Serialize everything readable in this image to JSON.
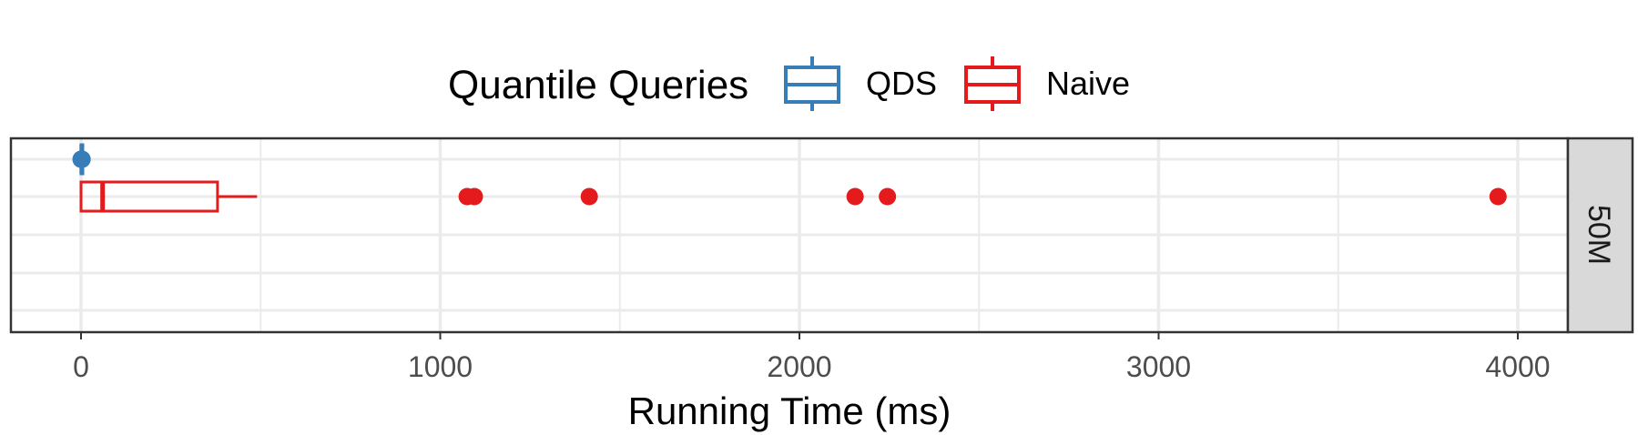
{
  "chart_data": {
    "type": "boxplot",
    "orientation": "horizontal",
    "title": "",
    "xlabel": "Running Time (ms)",
    "ylabel": "",
    "xlim": [
      -200,
      4150
    ],
    "x_ticks": [
      0,
      1000,
      2000,
      3000,
      4000
    ],
    "x_minor_ticks": [
      500,
      1500,
      2500,
      3500
    ],
    "grid": true,
    "facet_label": "50M",
    "legend": {
      "title": "Quantile Queries",
      "position": "top",
      "entries": [
        {
          "name": "QDS",
          "color": "#377eb8"
        },
        {
          "name": "Naive",
          "color": "#e41a1c"
        }
      ]
    },
    "series": [
      {
        "name": "QDS",
        "color": "#377eb8",
        "min": 0,
        "q1": 0,
        "median": 2,
        "q3": 4,
        "max": 8,
        "outliers": [
          0,
          1,
          2,
          3
        ]
      },
      {
        "name": "Naive",
        "color": "#e41a1c",
        "min": 0,
        "q1": 0,
        "median": 60,
        "q3": 380,
        "max": 490,
        "outliers": [
          1075,
          1095,
          1415,
          2155,
          2245,
          3945
        ]
      }
    ]
  }
}
